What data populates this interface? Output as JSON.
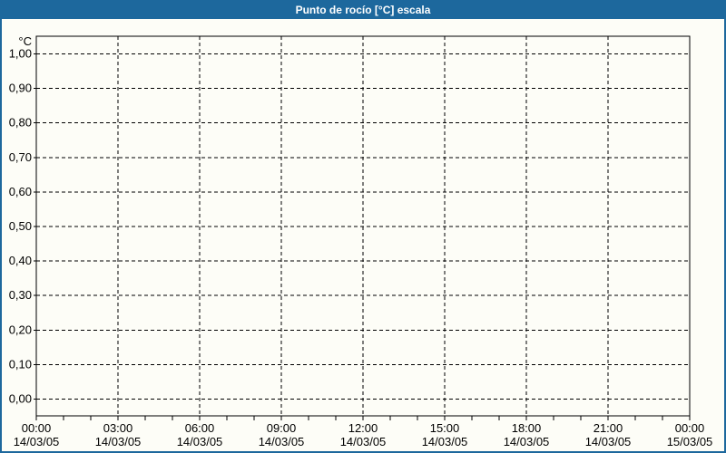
{
  "window": {
    "title": "Punto de rocío [°C] escala",
    "title_bar_color": "#1d689d",
    "border_color": "#1d689d",
    "background_color": "#fdfdf7",
    "axis_color": "#000000"
  },
  "chart_data": {
    "type": "line",
    "title": "Punto de rocío [°C] escala",
    "ylabel": "°C",
    "y_axis": {
      "unit_label": "°C",
      "tick_labels": [
        "1,00",
        "0,90",
        "0,80",
        "0,70",
        "0,60",
        "0,50",
        "0,40",
        "0,30",
        "0,20",
        "0,10",
        "0,00"
      ],
      "range": [
        0.0,
        1.0
      ],
      "tick_step": 0.1
    },
    "x_axis": {
      "tick_times": [
        "00:00",
        "03:00",
        "06:00",
        "09:00",
        "12:00",
        "15:00",
        "18:00",
        "21:00",
        "00:00"
      ],
      "tick_dates": [
        "14/03/05",
        "14/03/05",
        "14/03/05",
        "14/03/05",
        "14/03/05",
        "14/03/05",
        "14/03/05",
        "14/03/05",
        "15/03/05"
      ],
      "minor_ticks_per_interval": 3
    },
    "grid": {
      "style": "dashed",
      "horizontal": true,
      "vertical": true
    },
    "legend": "none",
    "series": []
  }
}
